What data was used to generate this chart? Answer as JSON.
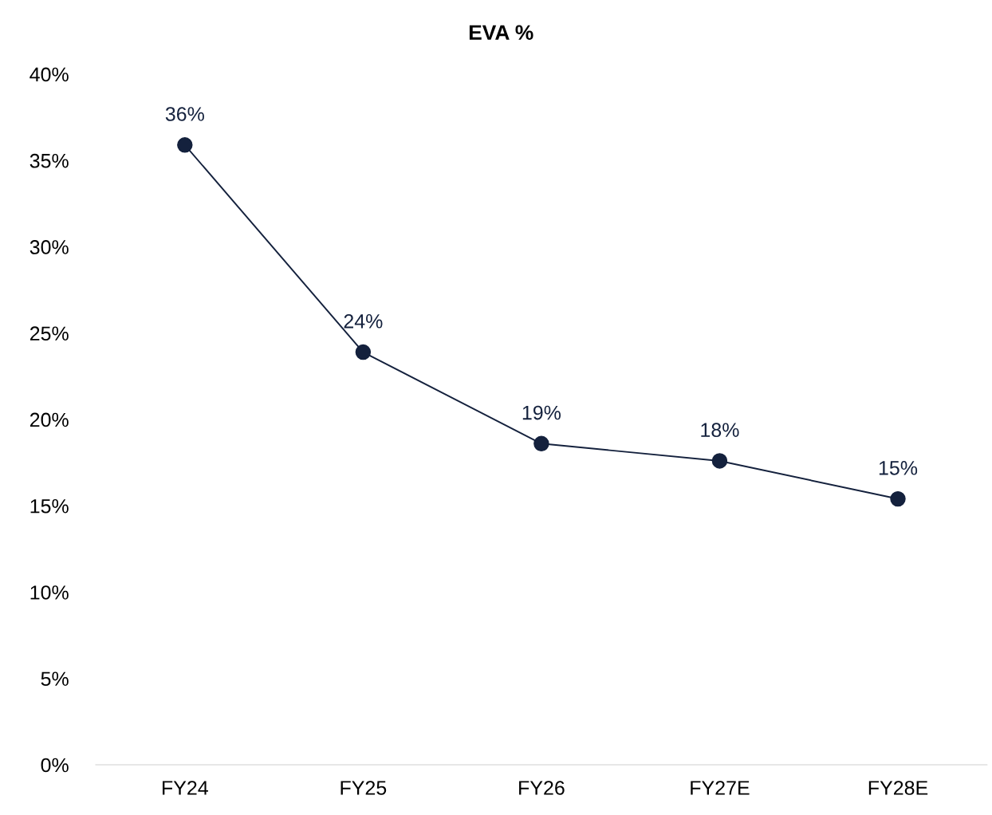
{
  "chart_data": {
    "type": "line",
    "title": "EVA %",
    "categories": [
      "FY24",
      "FY25",
      "FY26",
      "FY27E",
      "FY28E"
    ],
    "series": [
      {
        "color": "#14213d",
        "values": [
          35.9,
          23.9,
          18.6,
          17.6,
          15.4
        ],
        "value_labels": [
          "36%",
          "24%",
          "19%",
          "18%",
          "15%"
        ]
      }
    ],
    "ylim": [
      0,
      40
    ],
    "yticks": [
      {
        "value": 0,
        "label": "0%"
      },
      {
        "value": 5,
        "label": "5%"
      },
      {
        "value": 10,
        "label": "10%"
      },
      {
        "value": 15,
        "label": "15%"
      },
      {
        "value": 20,
        "label": "20%"
      },
      {
        "value": 25,
        "label": "25%"
      },
      {
        "value": 30,
        "label": "30%"
      },
      {
        "value": 35,
        "label": "35%"
      },
      {
        "value": 40,
        "label": "40%"
      }
    ],
    "marker": "circle",
    "line_style": "solid"
  }
}
